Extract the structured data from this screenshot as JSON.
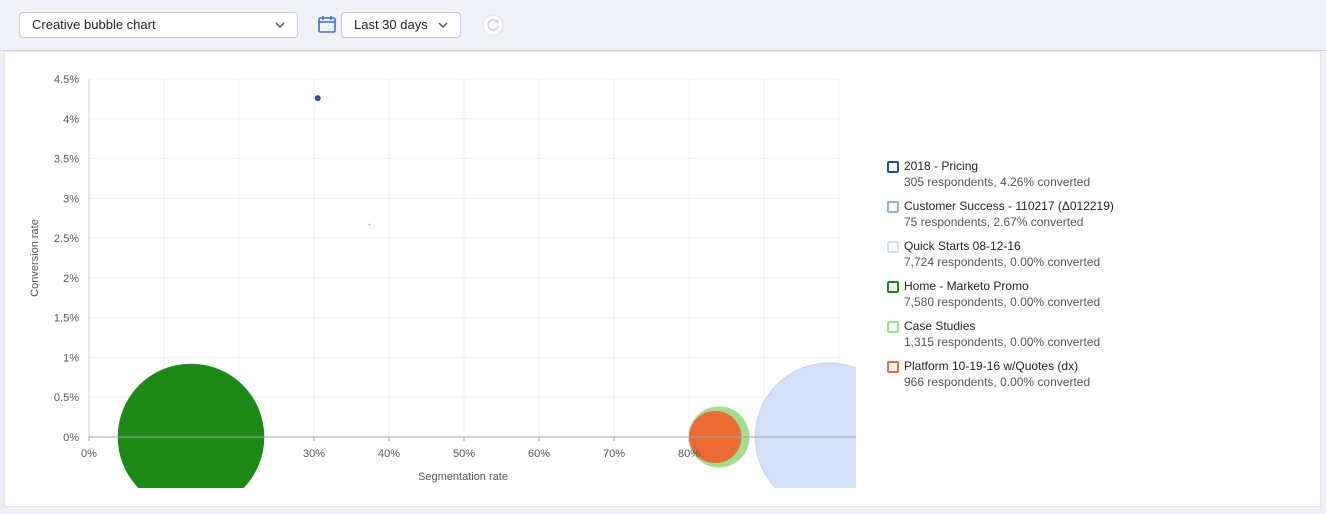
{
  "toolbar": {
    "view_select": {
      "value": "Creative bubble chart",
      "icon": "chevron-down-icon"
    },
    "date_select": {
      "value": "Last 30 days",
      "icon": "chevron-down-icon"
    },
    "calendar_icon": "calendar-icon",
    "refresh_icon": "refresh-icon",
    "accent": "#3f73cf"
  },
  "legend": [
    {
      "name": "2018 - Pricing",
      "stats": "305 respondents, 4.26% converted",
      "color": "#1f4e9c"
    },
    {
      "name": "Customer Success - 110217 (Δ012219)",
      "stats": "75 respondents, 2.67% converted",
      "color": "#8fb1e6"
    },
    {
      "name": "Quick Starts 08-12-16",
      "stats": "7,724 respondents, 0.00% converted",
      "color": "#d3e0f7"
    },
    {
      "name": "Home - Marketo Promo",
      "stats": "7,580 respondents, 0.00% converted",
      "color": "#1b8a17"
    },
    {
      "name": "Case Studies",
      "stats": "1,315 respondents, 0.00% converted",
      "color": "#9fe08e"
    },
    {
      "name": "Platform 10-19-16 w/Quotes (dx)",
      "stats": "966 respondents, 0.00% converted",
      "color": "#ec6b34"
    }
  ],
  "chart_data": {
    "type": "scatter",
    "title": "",
    "xlabel": "Segmentation rate",
    "ylabel": "Conversion rate",
    "xlim": [
      0,
      100
    ],
    "ylim": [
      0,
      4.5
    ],
    "x_ticks": [
      "0%",
      "30%",
      "40%",
      "50%",
      "60%",
      "70%",
      "80%"
    ],
    "y_ticks": [
      "0%",
      "0.5%",
      "1%",
      "1.5%",
      "2%",
      "2.5%",
      "3%",
      "3.5%",
      "4%",
      "4.5%"
    ],
    "grid": true,
    "legend_position": "right",
    "series": [
      {
        "name": "2018 - Pricing",
        "x": 30.5,
        "y": 4.26,
        "size": 305,
        "color": "#1f4e9c"
      },
      {
        "name": "Customer Success - 110217 (Δ012219)",
        "x": 37.4,
        "y": 2.67,
        "size": 75,
        "color": "#8fb1e6"
      },
      {
        "name": "Quick Starts 08-12-16",
        "x": 98.7,
        "y": 0.0,
        "size": 7724,
        "color": "#d3e0f7"
      },
      {
        "name": "Home - Marketo Promo",
        "x": 13.6,
        "y": 0.0,
        "size": 7580,
        "color": "#1b8a17"
      },
      {
        "name": "Case Studies",
        "x": 84.0,
        "y": 0.0,
        "size": 1315,
        "color": "#9fe08e"
      },
      {
        "name": "Platform 10-19-16 w/Quotes (dx)",
        "x": 83.5,
        "y": 0.0,
        "size": 966,
        "color": "#ec6b34"
      }
    ]
  }
}
